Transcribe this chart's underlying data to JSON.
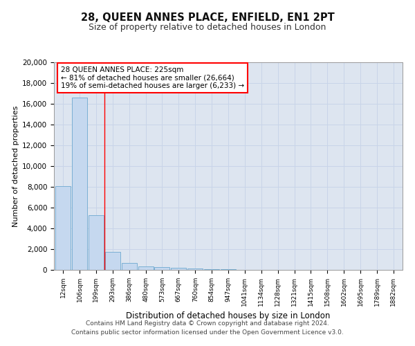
{
  "title": "28, QUEEN ANNES PLACE, ENFIELD, EN1 2PT",
  "subtitle": "Size of property relative to detached houses in London",
  "xlabel": "Distribution of detached houses by size in London",
  "ylabel": "Number of detached properties",
  "bin_labels": [
    "12sqm",
    "106sqm",
    "199sqm",
    "293sqm",
    "386sqm",
    "480sqm",
    "573sqm",
    "667sqm",
    "760sqm",
    "854sqm",
    "947sqm",
    "1041sqm",
    "1134sqm",
    "1228sqm",
    "1321sqm",
    "1415sqm",
    "1508sqm",
    "1602sqm",
    "1695sqm",
    "1789sqm",
    "1882sqm"
  ],
  "bar_heights": [
    8100,
    16600,
    5300,
    1750,
    700,
    350,
    280,
    200,
    130,
    80,
    50,
    30,
    20,
    10,
    5,
    3,
    2,
    1,
    1,
    0,
    0
  ],
  "bar_color": "#c5d8ef",
  "bar_edge_color": "#7aafd4",
  "property_size": 225,
  "annotation_text": "28 QUEEN ANNES PLACE: 225sqm\n← 81% of detached houses are smaller (26,664)\n19% of semi-detached houses are larger (6,233) →",
  "ylim": [
    0,
    20000
  ],
  "yticks": [
    0,
    2000,
    4000,
    6000,
    8000,
    10000,
    12000,
    14000,
    16000,
    18000,
    20000
  ],
  "grid_color": "#c8d4e8",
  "background_color": "#dde5f0",
  "footer_line1": "Contains HM Land Registry data © Crown copyright and database right 2024.",
  "footer_line2": "Contains public sector information licensed under the Open Government Licence v3.0."
}
